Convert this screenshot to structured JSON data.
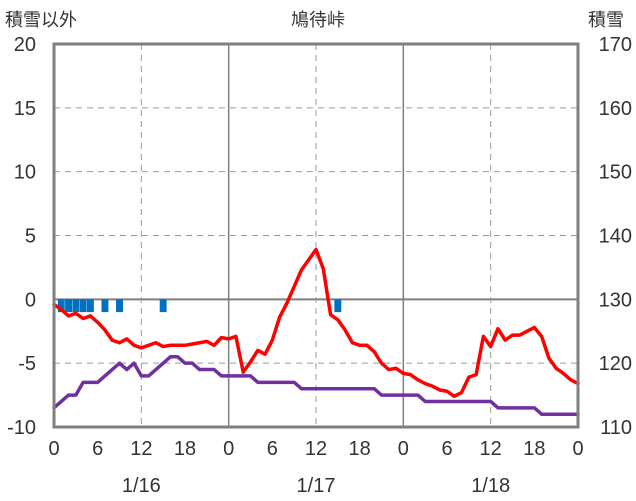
{
  "chart_data": {
    "type": "line",
    "title": "鳩待峠",
    "left_axis_label": "積雪以外",
    "right_axis_label": "積雪",
    "y_left": {
      "min": -10,
      "max": 20,
      "ticks": [
        "-10",
        "-5",
        "0",
        "5",
        "10",
        "15",
        "20"
      ]
    },
    "y_right": {
      "min": 110,
      "max": 170,
      "ticks": [
        "110",
        "120",
        "130",
        "140",
        "150",
        "160",
        "170"
      ]
    },
    "x_hours": {
      "min": 0,
      "max": 72
    },
    "x_ticks": [
      {
        "h": 0,
        "label": "0"
      },
      {
        "h": 6,
        "label": "6"
      },
      {
        "h": 12,
        "label": "12"
      },
      {
        "h": 18,
        "label": "18"
      },
      {
        "h": 24,
        "label": "0"
      },
      {
        "h": 30,
        "label": "6"
      },
      {
        "h": 36,
        "label": "12"
      },
      {
        "h": 42,
        "label": "18"
      },
      {
        "h": 48,
        "label": "0"
      },
      {
        "h": 54,
        "label": "6"
      },
      {
        "h": 60,
        "label": "12"
      },
      {
        "h": 66,
        "label": "18"
      },
      {
        "h": 72,
        "label": "0"
      }
    ],
    "dates": [
      {
        "h": 12,
        "label": "1/16"
      },
      {
        "h": 36,
        "label": "1/17"
      },
      {
        "h": 60,
        "label": "1/18"
      }
    ],
    "colors": {
      "temperature": "#ff0000",
      "snow_depth": "#7030a0",
      "precipitation": "#0070c0",
      "axes": "#7f7f7f",
      "zero_line": "#7f7f7f"
    },
    "series": [
      {
        "key": "temperature",
        "axis": "left",
        "points": [
          [
            0,
            -0.4
          ],
          [
            1,
            -0.8
          ],
          [
            2,
            -1.3
          ],
          [
            3,
            -1.1
          ],
          [
            4,
            -1.5
          ],
          [
            5,
            -1.3
          ],
          [
            6,
            -1.8
          ],
          [
            7,
            -2.4
          ],
          [
            8,
            -3.2
          ],
          [
            9,
            -3.4
          ],
          [
            10,
            -3.1
          ],
          [
            11,
            -3.6
          ],
          [
            12,
            -3.8
          ],
          [
            13,
            -3.6
          ],
          [
            14,
            -3.4
          ],
          [
            15,
            -3.7
          ],
          [
            16,
            -3.6
          ],
          [
            17,
            -3.6
          ],
          [
            18,
            -3.6
          ],
          [
            19,
            -3.5
          ],
          [
            20,
            -3.4
          ],
          [
            21,
            -3.3
          ],
          [
            22,
            -3.6
          ],
          [
            23,
            -3.0
          ],
          [
            24,
            -3.1
          ],
          [
            25,
            -2.9
          ],
          [
            26,
            -5.7
          ],
          [
            27,
            -4.9
          ],
          [
            28,
            -4.0
          ],
          [
            29,
            -4.3
          ],
          [
            30,
            -3.2
          ],
          [
            31,
            -1.4
          ],
          [
            32,
            -0.3
          ],
          [
            33,
            1.0
          ],
          [
            34,
            2.3
          ],
          [
            35,
            3.1
          ],
          [
            36,
            3.9
          ],
          [
            37,
            2.4
          ],
          [
            38,
            -1.2
          ],
          [
            39,
            -1.6
          ],
          [
            40,
            -2.4
          ],
          [
            41,
            -3.4
          ],
          [
            42,
            -3.6
          ],
          [
            43,
            -3.6
          ],
          [
            44,
            -4.1
          ],
          [
            45,
            -5.0
          ],
          [
            46,
            -5.5
          ],
          [
            47,
            -5.4
          ],
          [
            48,
            -5.8
          ],
          [
            49,
            -5.9
          ],
          [
            50,
            -6.3
          ],
          [
            51,
            -6.6
          ],
          [
            52,
            -6.8
          ],
          [
            53,
            -7.1
          ],
          [
            54,
            -7.2
          ],
          [
            55,
            -7.6
          ],
          [
            56,
            -7.3
          ],
          [
            57,
            -6.1
          ],
          [
            58,
            -5.9
          ],
          [
            59,
            -2.9
          ],
          [
            60,
            -3.7
          ],
          [
            61,
            -2.3
          ],
          [
            62,
            -3.2
          ],
          [
            63,
            -2.8
          ],
          [
            64,
            -2.8
          ],
          [
            65,
            -2.5
          ],
          [
            66,
            -2.2
          ],
          [
            67,
            -2.9
          ],
          [
            68,
            -4.6
          ],
          [
            69,
            -5.4
          ],
          [
            70,
            -5.8
          ],
          [
            71,
            -6.3
          ],
          [
            72,
            -6.6
          ]
        ]
      },
      {
        "key": "snow_depth",
        "axis": "right",
        "points": [
          [
            0,
            113
          ],
          [
            1,
            114
          ],
          [
            2,
            115
          ],
          [
            3,
            115
          ],
          [
            4,
            117
          ],
          [
            5,
            117
          ],
          [
            6,
            117
          ],
          [
            7,
            118
          ],
          [
            8,
            119
          ],
          [
            9,
            120
          ],
          [
            10,
            119
          ],
          [
            11,
            120
          ],
          [
            12,
            118
          ],
          [
            13,
            118
          ],
          [
            14,
            119
          ],
          [
            15,
            120
          ],
          [
            16,
            121
          ],
          [
            17,
            121
          ],
          [
            18,
            120
          ],
          [
            19,
            120
          ],
          [
            20,
            119
          ],
          [
            21,
            119
          ],
          [
            22,
            119
          ],
          [
            23,
            118
          ],
          [
            24,
            118
          ],
          [
            25,
            118
          ],
          [
            26,
            118
          ],
          [
            27,
            118
          ],
          [
            28,
            117
          ],
          [
            29,
            117
          ],
          [
            30,
            117
          ],
          [
            31,
            117
          ],
          [
            32,
            117
          ],
          [
            33,
            117
          ],
          [
            34,
            116
          ],
          [
            35,
            116
          ],
          [
            36,
            116
          ],
          [
            37,
            116
          ],
          [
            38,
            116
          ],
          [
            39,
            116
          ],
          [
            40,
            116
          ],
          [
            41,
            116
          ],
          [
            42,
            116
          ],
          [
            43,
            116
          ],
          [
            44,
            116
          ],
          [
            45,
            115
          ],
          [
            46,
            115
          ],
          [
            47,
            115
          ],
          [
            48,
            115
          ],
          [
            49,
            115
          ],
          [
            50,
            115
          ],
          [
            51,
            114
          ],
          [
            52,
            114
          ],
          [
            53,
            114
          ],
          [
            54,
            114
          ],
          [
            55,
            114
          ],
          [
            56,
            114
          ],
          [
            57,
            114
          ],
          [
            58,
            114
          ],
          [
            59,
            114
          ],
          [
            60,
            114
          ],
          [
            61,
            113
          ],
          [
            62,
            113
          ],
          [
            63,
            113
          ],
          [
            64,
            113
          ],
          [
            65,
            113
          ],
          [
            66,
            113
          ],
          [
            67,
            112
          ],
          [
            68,
            112
          ],
          [
            69,
            112
          ],
          [
            70,
            112
          ],
          [
            71,
            112
          ],
          [
            72,
            112
          ]
        ]
      },
      {
        "key": "precipitation",
        "axis": "left",
        "bars": [
          [
            1,
            1
          ],
          [
            2,
            1
          ],
          [
            3,
            1
          ],
          [
            4,
            1
          ],
          [
            5,
            1
          ],
          [
            7,
            1
          ],
          [
            9,
            1
          ],
          [
            15,
            1
          ],
          [
            39,
            1
          ]
        ]
      }
    ]
  }
}
